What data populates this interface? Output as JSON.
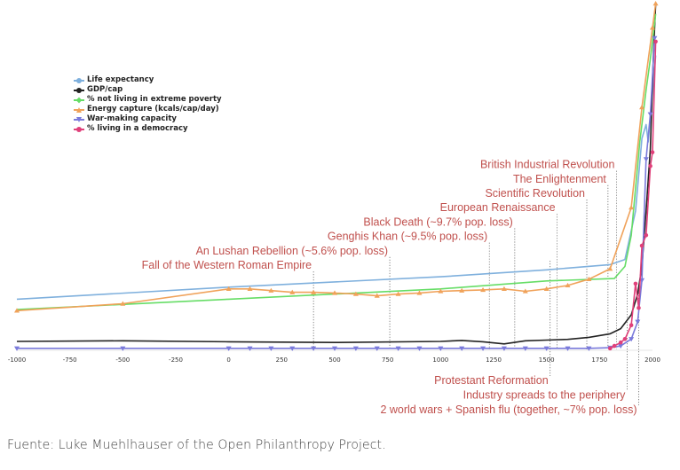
{
  "chart_data": {
    "type": "line",
    "title": "",
    "xlabel": "",
    "ylabel": "",
    "xlim": [
      -1000,
      2000
    ],
    "ylim": [
      0,
      100
    ],
    "x_ticks": [
      -1000,
      -750,
      -500,
      -250,
      0,
      250,
      500,
      750,
      1000,
      1250,
      1500,
      1750,
      2000
    ],
    "x_tick_labels": [
      "-1000",
      "-750",
      "-500",
      "-250",
      "0",
      "250",
      "500",
      "750",
      "1000",
      "1250",
      "1500",
      "1750",
      "2000"
    ],
    "grid": false,
    "legend_position": "top-left",
    "series": [
      {
        "name": "Life expectancy",
        "color": "#7fb0dd",
        "marker": "none",
        "points": [
          [
            -1000,
            14.5
          ],
          [
            0,
            18
          ],
          [
            1000,
            21
          ],
          [
            1500,
            23
          ],
          [
            1800,
            24.5
          ],
          [
            1870,
            26
          ],
          [
            1920,
            40
          ],
          [
            1950,
            61
          ],
          [
            1970,
            65
          ],
          [
            1980,
            60
          ],
          [
            2000,
            74
          ],
          [
            2015,
            85
          ]
        ]
      },
      {
        "name": "GDP/cap",
        "color": "#222222",
        "marker": "none",
        "points": [
          [
            -1000,
            2.3
          ],
          [
            -500,
            2.5
          ],
          [
            0,
            2.2
          ],
          [
            500,
            2.0
          ],
          [
            1000,
            2.3
          ],
          [
            1100,
            2.6
          ],
          [
            1200,
            2.2
          ],
          [
            1300,
            1.6
          ],
          [
            1400,
            2.5
          ],
          [
            1500,
            2.7
          ],
          [
            1600,
            2.9
          ],
          [
            1700,
            3.5
          ],
          [
            1800,
            4.5
          ],
          [
            1850,
            6
          ],
          [
            1900,
            10
          ],
          [
            1930,
            16
          ],
          [
            1950,
            24
          ],
          [
            1970,
            40
          ],
          [
            1990,
            58
          ],
          [
            2005,
            86
          ],
          [
            2015,
            100
          ]
        ]
      },
      {
        "name": "% not living in extreme poverty",
        "color": "#66dd66",
        "marker": "none",
        "points": [
          [
            -1000,
            11.5
          ],
          [
            0,
            14.5
          ],
          [
            1000,
            17.5
          ],
          [
            1500,
            19.8
          ],
          [
            1820,
            20.5
          ],
          [
            1870,
            24
          ],
          [
            1900,
            33
          ],
          [
            1940,
            60
          ],
          [
            1970,
            75
          ],
          [
            1990,
            84
          ],
          [
            2015,
            97
          ]
        ]
      },
      {
        "name": "Energy capture (kcals/cap/day)",
        "color": "#f0a25a",
        "marker": "triangle-up",
        "points": [
          [
            -1000,
            11.2
          ],
          [
            -500,
            13.2
          ],
          [
            0,
            17.5
          ],
          [
            100,
            17.5
          ],
          [
            200,
            17
          ],
          [
            300,
            16.5
          ],
          [
            400,
            16.5
          ],
          [
            500,
            16.3
          ],
          [
            600,
            16
          ],
          [
            700,
            15.5
          ],
          [
            800,
            16
          ],
          [
            900,
            16.3
          ],
          [
            1000,
            16.8
          ],
          [
            1100,
            17
          ],
          [
            1200,
            17.2
          ],
          [
            1300,
            17.5
          ],
          [
            1400,
            16.8
          ],
          [
            1500,
            17.5
          ],
          [
            1600,
            18.5
          ],
          [
            1700,
            20.3
          ],
          [
            1800,
            23.3
          ],
          [
            1900,
            41
          ],
          [
            1950,
            70
          ],
          [
            2000,
            93
          ],
          [
            2015,
            100
          ]
        ]
      },
      {
        "name": "War-making capacity",
        "color": "#7a7adb",
        "marker": "triangle-down",
        "points": [
          [
            -1000,
            0.3
          ],
          [
            -500,
            0.3
          ],
          [
            0,
            0.3
          ],
          [
            100,
            0.3
          ],
          [
            200,
            0.3
          ],
          [
            300,
            0.3
          ],
          [
            400,
            0.3
          ],
          [
            500,
            0.3
          ],
          [
            600,
            0.3
          ],
          [
            700,
            0.3
          ],
          [
            800,
            0.3
          ],
          [
            900,
            0.3
          ],
          [
            1000,
            0.3
          ],
          [
            1100,
            0.3
          ],
          [
            1200,
            0.3
          ],
          [
            1300,
            0.3
          ],
          [
            1400,
            0.3
          ],
          [
            1500,
            0.3
          ],
          [
            1600,
            0.3
          ],
          [
            1700,
            0.3
          ],
          [
            1800,
            0.5
          ],
          [
            1850,
            1
          ],
          [
            1900,
            3
          ],
          [
            1930,
            8
          ],
          [
            1950,
            20
          ],
          [
            1970,
            55
          ],
          [
            1990,
            68
          ],
          [
            2010,
            90
          ]
        ]
      },
      {
        "name": "% living in a democracy",
        "color": "#e0407a",
        "marker": "circle",
        "points": [
          [
            1800,
            0.3
          ],
          [
            1820,
            1.0
          ],
          [
            1850,
            2
          ],
          [
            1870,
            3
          ],
          [
            1900,
            7
          ],
          [
            1920,
            19
          ],
          [
            1935,
            12
          ],
          [
            1950,
            30
          ],
          [
            1970,
            33
          ],
          [
            1990,
            53
          ],
          [
            2000,
            57
          ],
          [
            2015,
            89
          ]
        ]
      }
    ],
    "annotations": [
      {
        "label": "Fall of the Western Roman Empire",
        "x": 400,
        "position": "above"
      },
      {
        "label": "An Lushan Rebellion (~5.6% pop. loss)",
        "x": 760,
        "position": "above"
      },
      {
        "label": "Genghis Khan (~9.5% pop. loss)",
        "x": 1230,
        "position": "above"
      },
      {
        "label": "Black Death (~9.7% pop. loss)",
        "x": 1350,
        "position": "above"
      },
      {
        "label": "European Renaissance",
        "x": 1550,
        "position": "above"
      },
      {
        "label": "Scientific Revolution",
        "x": 1690,
        "position": "above"
      },
      {
        "label": "The Enlightenment",
        "x": 1790,
        "position": "above"
      },
      {
        "label": "British Industrial Revolution",
        "x": 1830,
        "position": "above"
      },
      {
        "label": "Protestant Reformation",
        "x": 1517,
        "position": "below"
      },
      {
        "label": "Industry spreads to the periphery",
        "x": 1880,
        "position": "below"
      },
      {
        "label": "2 world wars + Spanish flu (together, ~7%  pop. loss)",
        "x": 1935,
        "position": "below"
      }
    ]
  },
  "source": "Fuente: Luke Muehlhauser of the Open Philanthropy Project."
}
